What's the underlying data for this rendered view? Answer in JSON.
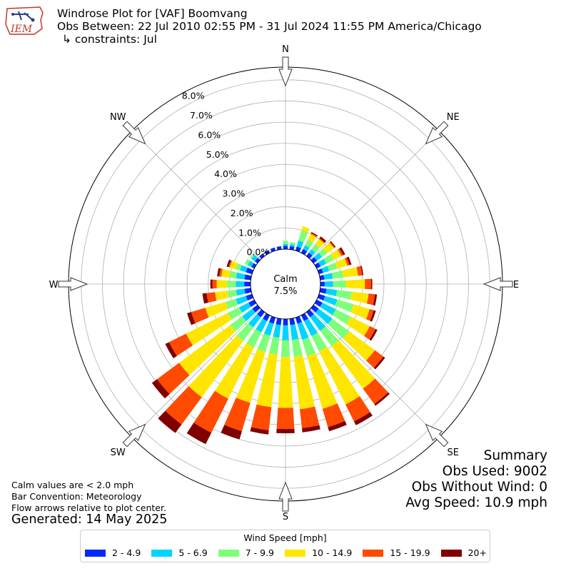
{
  "logo": {
    "text": "IEM"
  },
  "title": {
    "line1": "Windrose Plot for [VAF] Boomvang",
    "line2": "Obs Between: 22 Jul 2010 02:55 PM - 31 Jul 2024 11:55 PM America/Chicago",
    "line3": "↳ constraints: Jul"
  },
  "notes": {
    "calm": "Calm values are < 2.0 mph",
    "convention": "Bar Convention: Meteorology",
    "arrows": "Flow arrows relative to plot center.",
    "generated": "Generated: 14 May 2025"
  },
  "summary": {
    "heading": "Summary",
    "obs_used": "Obs Used: 9002",
    "obs_without_wind": "Obs Without Wind: 0",
    "avg_speed": "Avg Speed: 10.9 mph"
  },
  "legend": {
    "title": "Wind Speed [mph]",
    "items": [
      {
        "label": "2 - 4.9",
        "color": "#0028ff"
      },
      {
        "label": "5 - 6.9",
        "color": "#00d4ff"
      },
      {
        "label": "7 - 9.9",
        "color": "#7dff7a"
      },
      {
        "label": "10 - 14.9",
        "color": "#ffe600"
      },
      {
        "label": "15 - 19.9",
        "color": "#ff4a00"
      },
      {
        "label": "20+",
        "color": "#800000"
      }
    ]
  },
  "chart_data": {
    "type": "windrose",
    "center_label": "Calm",
    "center_value": "7.5%",
    "radial_unit": "percent",
    "radial_range": [
      0,
      8.6
    ],
    "radial_ticks": [
      "0.0%",
      "1.0%",
      "2.0%",
      "3.0%",
      "4.0%",
      "5.0%",
      "6.0%",
      "7.0%",
      "8.0%"
    ],
    "cardinal_labels": [
      "N",
      "NE",
      "E",
      "SE",
      "S",
      "SW",
      "W",
      "NW"
    ],
    "grid": true,
    "legend_placement": "bottom-center",
    "directions_deg": [
      0,
      10,
      20,
      30,
      40,
      50,
      60,
      70,
      80,
      90,
      100,
      110,
      120,
      130,
      140,
      150,
      160,
      170,
      180,
      190,
      200,
      210,
      220,
      230,
      240,
      250,
      260,
      270,
      280,
      290,
      300,
      310,
      320,
      330,
      340,
      350
    ],
    "series": [
      {
        "name": "2 - 4.9",
        "values": [
          0.15,
          0.15,
          0.2,
          0.2,
          0.2,
          0.2,
          0.2,
          0.2,
          0.2,
          0.2,
          0.3,
          0.3,
          0.3,
          0.3,
          0.3,
          0.3,
          0.3,
          0.3,
          0.3,
          0.3,
          0.3,
          0.3,
          0.3,
          0.3,
          0.3,
          0.3,
          0.3,
          0.3,
          0.3,
          0.3,
          0.15,
          0.15,
          0.15,
          0.15,
          0.15,
          0.15
        ]
      },
      {
        "name": "5 - 6.9",
        "values": [
          0.1,
          0.1,
          0.3,
          0.2,
          0.2,
          0.3,
          0.3,
          0.3,
          0.4,
          0.4,
          0.5,
          0.6,
          0.7,
          0.8,
          0.8,
          0.8,
          0.8,
          0.7,
          0.7,
          0.6,
          0.6,
          0.6,
          0.6,
          0.6,
          0.5,
          0.5,
          0.4,
          0.4,
          0.4,
          0.3,
          0.2,
          0.2,
          0.0,
          0.0,
          0.0,
          0.0
        ]
      },
      {
        "name": "7 - 9.9",
        "values": [
          0.15,
          0.1,
          0.5,
          0.3,
          0.3,
          0.3,
          0.4,
          0.4,
          0.5,
          0.6,
          0.7,
          0.8,
          0.8,
          1.0,
          0.9,
          0.8,
          0.8,
          0.8,
          0.8,
          0.8,
          0.8,
          0.8,
          0.8,
          0.7,
          0.6,
          0.5,
          0.4,
          0.4,
          0.3,
          0.2,
          0.15,
          0.1,
          0.0,
          0.0,
          0.0,
          0.0
        ]
      },
      {
        "name": "10 - 14.9",
        "values": [
          0.0,
          0.0,
          0.2,
          0.3,
          0.3,
          0.4,
          0.4,
          0.5,
          0.7,
          0.9,
          0.8,
          0.8,
          1.0,
          1.5,
          2.5,
          2.8,
          2.6,
          2.5,
          2.4,
          2.5,
          2.5,
          2.7,
          3.3,
          3.0,
          2.2,
          1.0,
          0.6,
          0.5,
          0.4,
          0.3,
          0.0,
          0.0,
          0.0,
          0.0,
          0.0,
          0.0
        ]
      },
      {
        "name": "15 - 19.9",
        "values": [
          0.0,
          0.0,
          0.0,
          0.05,
          0.05,
          0.05,
          0.1,
          0.1,
          0.2,
          0.3,
          0.3,
          0.2,
          0.3,
          0.5,
          0.9,
          0.9,
          0.9,
          0.9,
          1.0,
          1.1,
          1.4,
          1.8,
          1.6,
          1.3,
          0.9,
          0.7,
          0.4,
          0.2,
          0.1,
          0.05,
          0.0,
          0.0,
          0.0,
          0.0,
          0.0,
          0.0
        ]
      },
      {
        "name": "20+",
        "values": [
          0.0,
          0.0,
          0.0,
          0.05,
          0.1,
          0.05,
          0.1,
          0.1,
          0.05,
          0.05,
          0.1,
          0.1,
          0.1,
          0.1,
          0.1,
          0.2,
          0.2,
          0.2,
          0.2,
          0.2,
          0.4,
          0.6,
          0.5,
          0.3,
          0.2,
          0.2,
          0.2,
          0.1,
          0.1,
          0.1,
          0.0,
          0.0,
          0.0,
          0.0,
          0.0,
          0.0
        ]
      }
    ]
  }
}
